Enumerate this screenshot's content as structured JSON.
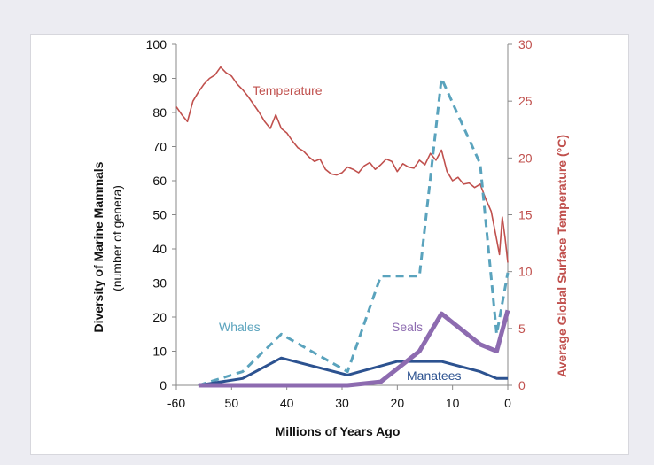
{
  "chart_data": {
    "type": "line",
    "xlabel": "Millions of Years Ago",
    "ylabel": "Diversity of Marine Mammals",
    "ylabel_sub": "(number of genera)",
    "y2label": "Average Global Surface Temperature (°C)",
    "xlim": [
      -60,
      0
    ],
    "ylim": [
      0,
      100
    ],
    "y2lim": [
      0,
      30
    ],
    "x_ticks": [
      -60,
      50,
      40,
      30,
      20,
      10,
      0
    ],
    "y_ticks": [
      0,
      10,
      20,
      30,
      40,
      50,
      60,
      70,
      80,
      90,
      100
    ],
    "y2_ticks": [
      0,
      5,
      10,
      15,
      20,
      25,
      30
    ],
    "grid": false,
    "legend": "inline labels",
    "series": [
      {
        "name": "Whales",
        "axis": "left",
        "color": "#5aa3bd",
        "style": "dashed",
        "x": [
          -56,
          -48,
          -41,
          -29,
          -23,
          -16,
          -12,
          -5,
          -2,
          0
        ],
        "y": [
          0,
          4,
          15,
          4,
          32,
          32,
          90,
          65,
          15,
          33
        ]
      },
      {
        "name": "Manatees",
        "axis": "left",
        "color": "#2c5290",
        "style": "solid",
        "x": [
          -56,
          -48,
          -41,
          -29,
          -20,
          -12,
          -5,
          -2,
          0
        ],
        "y": [
          0,
          2,
          8,
          3,
          7,
          7,
          4,
          2,
          2
        ]
      },
      {
        "name": "Seals",
        "axis": "left",
        "color": "#8d6bb0",
        "style": "solid",
        "x": [
          -56,
          -29,
          -23,
          -16,
          -12,
          -5,
          -2,
          0
        ],
        "y": [
          0,
          0,
          1,
          10,
          21,
          12,
          10,
          22
        ]
      },
      {
        "name": "Temperature",
        "axis": "right",
        "color": "#c0504d",
        "style": "solid",
        "x": [
          -60,
          -59,
          -58,
          -57,
          -56,
          -55,
          -54,
          -53,
          -52,
          -51,
          -50,
          -49,
          -48,
          -47,
          -46,
          -45,
          -44,
          -43,
          -42,
          -41,
          -40,
          -39,
          -38,
          -37,
          -36,
          -35,
          -34,
          -33,
          -32,
          -31,
          -30,
          -29,
          -28,
          -27,
          -26,
          -25,
          -24,
          -23,
          -22,
          -21,
          -20,
          -19,
          -18,
          -17,
          -16,
          -15,
          -14,
          -13,
          -12,
          -11,
          -10,
          -9,
          -8,
          -7,
          -6,
          -5,
          -4,
          -3,
          -2,
          -1.5,
          -1,
          -0.5,
          0
        ],
        "y": [
          24.5,
          23.8,
          23.2,
          25.0,
          25.8,
          26.5,
          27.0,
          27.3,
          28.0,
          27.5,
          27.2,
          26.5,
          26.0,
          25.4,
          24.7,
          24.0,
          23.2,
          22.6,
          23.8,
          22.6,
          22.2,
          21.5,
          20.9,
          20.6,
          20.1,
          19.7,
          19.9,
          19.0,
          18.6,
          18.5,
          18.7,
          19.2,
          19.0,
          18.7,
          19.3,
          19.6,
          19.0,
          19.4,
          19.9,
          19.7,
          18.8,
          19.5,
          19.2,
          19.1,
          19.8,
          19.4,
          20.4,
          19.8,
          20.7,
          18.8,
          18.0,
          18.3,
          17.7,
          17.8,
          17.4,
          17.7,
          16.4,
          15.3,
          12.8,
          11.5,
          14.8,
          13.0,
          10.8
        ]
      }
    ],
    "annotations": [
      "Whales",
      "Seals",
      "Manatees",
      "Temperature"
    ]
  }
}
